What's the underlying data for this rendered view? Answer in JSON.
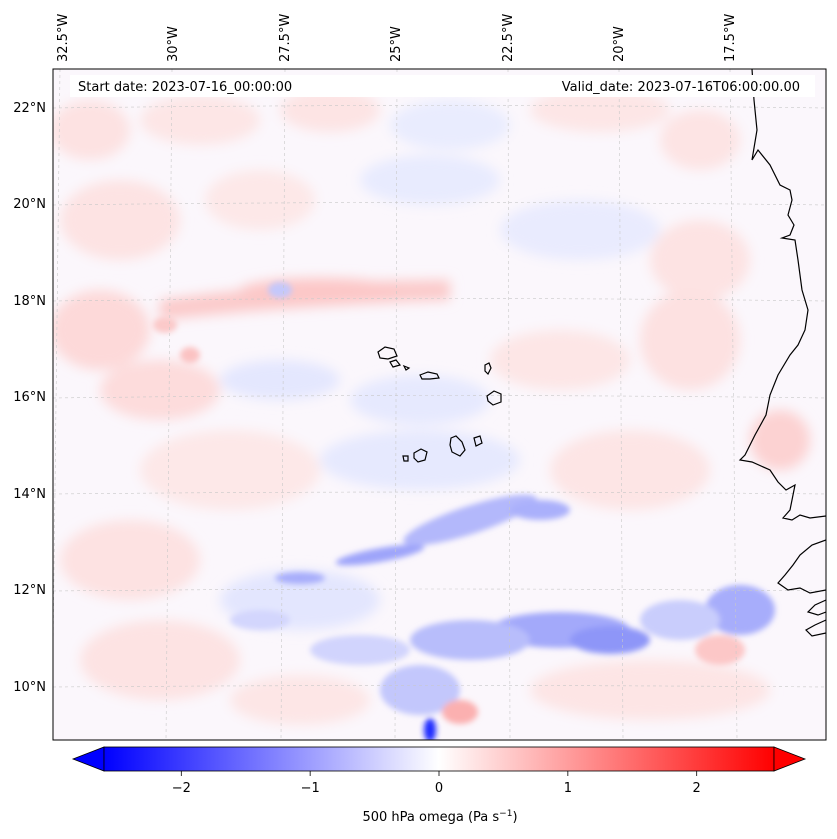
{
  "map": {
    "start_date_text": "Start date: 2023-07-16_00:00:00",
    "valid_date_text": "Valid_date: 2023-07-16T06:00:00.00",
    "lon_labels": [
      "32.5°W",
      "30°W",
      "27.5°W",
      "25°W",
      "22.5°W",
      "20°W",
      "17.5°W"
    ],
    "lat_labels": [
      "22°N",
      "20°N",
      "18°N",
      "16°N",
      "14°N",
      "12°N",
      "10°N"
    ],
    "gridlines": true,
    "coastline_color": "#000000"
  },
  "colorbar": {
    "label_text": "500 hPa omega (Pa s",
    "label_superscript": "−1",
    "label_close": ")",
    "ticks": [
      {
        "value": -2,
        "label": "−2"
      },
      {
        "value": -1,
        "label": "−1"
      },
      {
        "value": 0,
        "label": "0"
      },
      {
        "value": 1,
        "label": "1"
      },
      {
        "value": 2,
        "label": "2"
      }
    ],
    "range": [
      -2.6,
      2.6
    ],
    "extend": "both",
    "colormap": "bwr",
    "colors": {
      "negative": "#0000ff",
      "zero": "#ffffff",
      "positive": "#ff0000"
    }
  }
}
